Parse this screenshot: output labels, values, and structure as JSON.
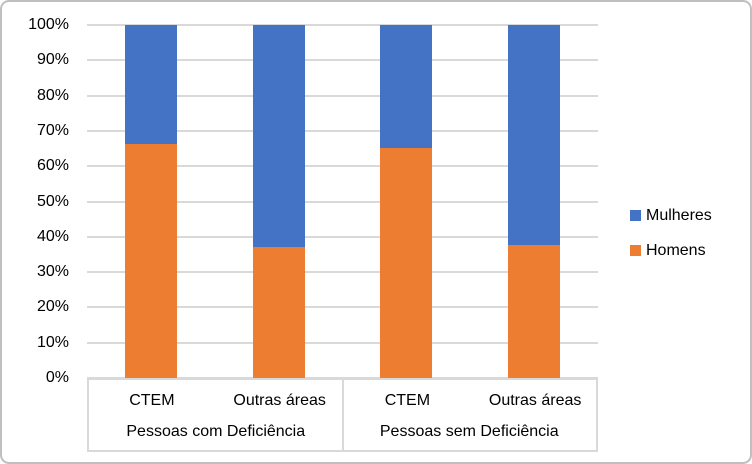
{
  "chart_data": {
    "type": "bar",
    "stacked": true,
    "percent_stacked": true,
    "title": "",
    "xlabel": "",
    "ylabel": "",
    "groups": [
      {
        "label": "Pessoas com Deficiência",
        "categories": [
          "CTEM",
          "Outras áreas"
        ]
      },
      {
        "label": "Pessoas sem Deficiência",
        "categories": [
          "CTEM",
          "Outras áreas"
        ]
      }
    ],
    "categories": [
      "CTEM (Pessoas com Deficiência)",
      "Outras áreas (Pessoas com Deficiência)",
      "CTEM (Pessoas sem Deficiência)",
      "Outras áreas (Pessoas sem Deficiência)"
    ],
    "series": [
      {
        "name": "Homens",
        "color": "#ED7D31",
        "values": [
          66.3,
          37.2,
          65.2,
          37.8
        ]
      },
      {
        "name": "Mulheres",
        "color": "#4472C4",
        "values": [
          33.7,
          62.8,
          34.8,
          62.2
        ]
      }
    ],
    "y_axis": {
      "min": 0,
      "max": 100,
      "tick_step": 10,
      "ticks": [
        "0%",
        "10%",
        "20%",
        "30%",
        "40%",
        "50%",
        "60%",
        "70%",
        "80%",
        "90%",
        "100%"
      ]
    },
    "legend": {
      "position": "right",
      "items": [
        {
          "label": "Mulheres",
          "color": "#4472C4"
        },
        {
          "label": "Homens",
          "color": "#ED7D31"
        }
      ]
    },
    "grid": {
      "show": true,
      "color": "#D9D9D9"
    }
  },
  "colors": {
    "mulheres": "#4472C4",
    "homens": "#ED7D31",
    "gridline": "#D9D9D9",
    "frame_border": "#BFBFBF",
    "text": "#000000",
    "background": "#FFFFFF"
  }
}
